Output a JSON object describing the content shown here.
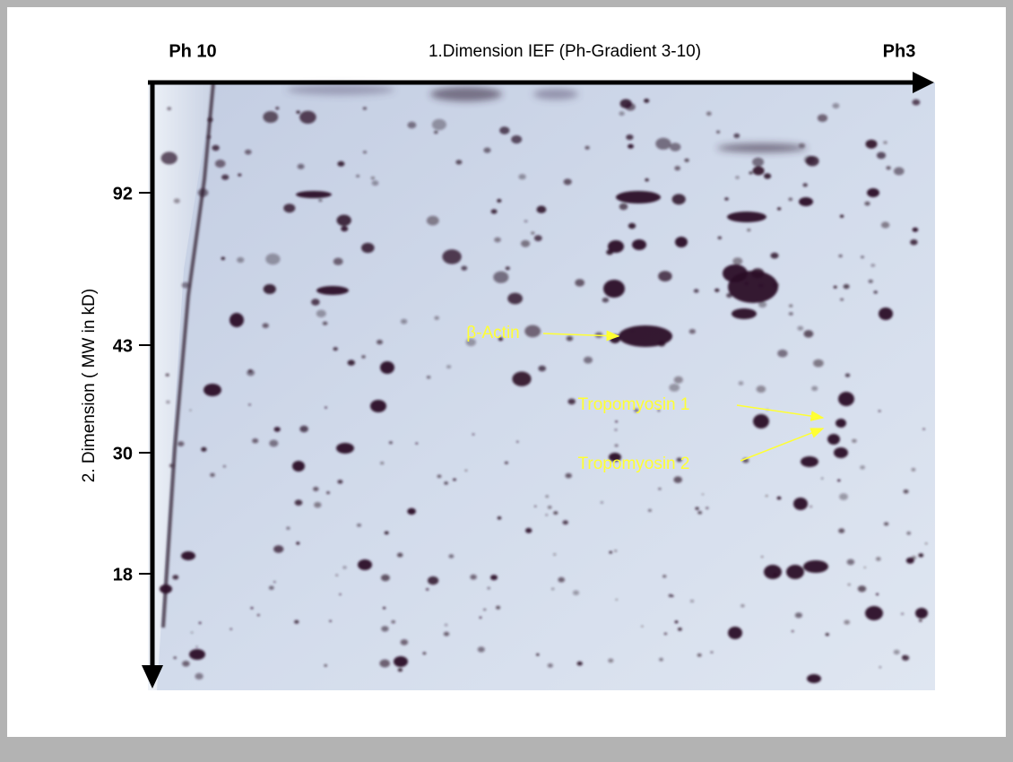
{
  "header": {
    "left": "Ph 10",
    "title": "1.Dimension IEF (Ph-Gradient 3-10)",
    "right": "Ph3"
  },
  "y_axis": {
    "label": "2. Dimension ( MW in kD)",
    "ticks": [
      "92",
      "43",
      "30",
      "18"
    ]
  },
  "annotations": [
    "β-Actin",
    "Tropomyosin 1",
    "Tropomyosin 2"
  ]
}
